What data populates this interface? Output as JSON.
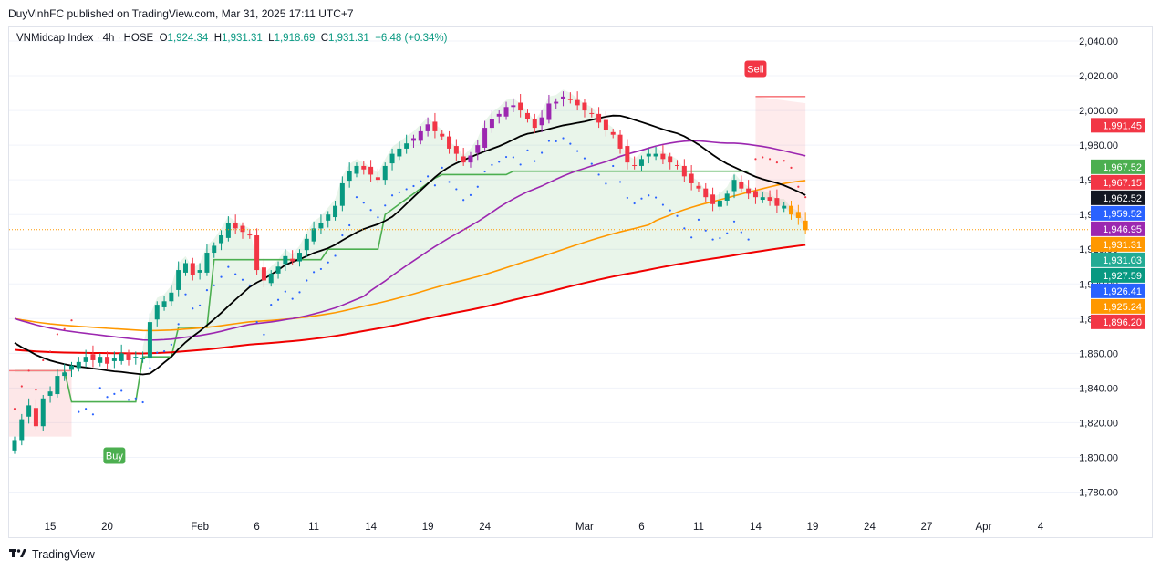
{
  "header": {
    "published_by": "DuyVinhFC published on TradingView.com, Mar 31, 2025 17:11 UTC+7"
  },
  "legend": {
    "symbol": "VNMidcap Index · 4h · HOSE",
    "o_label": "O",
    "o": "1,924.34",
    "h_label": "H",
    "h": "1,931.31",
    "l_label": "L",
    "l": "1,918.69",
    "c_label": "C",
    "c": "1,931.31",
    "change": "+6.48 (+0.34%)"
  },
  "footer": {
    "brand": "TradingView",
    "logo_icon": "tradingview-logo-icon"
  },
  "signals": [
    {
      "label": "Buy",
      "color": "#4caf50"
    },
    {
      "label": "Sell",
      "color": "#f23645"
    }
  ],
  "chart_data": {
    "type": "candlestick",
    "ylim": [
      1770,
      2045
    ],
    "y_ticks": [
      {
        "value": 1780,
        "label": "1,780.00"
      },
      {
        "value": 1800,
        "label": "1,800.00"
      },
      {
        "value": 1820,
        "label": "1,820.00"
      },
      {
        "value": 1840,
        "label": "1,840.00"
      },
      {
        "value": 1860,
        "label": "1,860.00"
      },
      {
        "value": 1880,
        "label": "1,880.00"
      },
      {
        "value": 1900,
        "label": "1,900.00"
      },
      {
        "value": 1920,
        "label": "1,920.00"
      },
      {
        "value": 1940,
        "label": "1,940.00"
      },
      {
        "value": 1960,
        "label": "1,960.00"
      },
      {
        "value": 1980,
        "label": "1,980.00"
      },
      {
        "value": 2000,
        "label": "2,000.00"
      },
      {
        "value": 2020,
        "label": "2,020.00"
      },
      {
        "value": 2040,
        "label": "2,040.00"
      }
    ],
    "x_ticks": [
      {
        "i": 5,
        "label": "15"
      },
      {
        "i": 13,
        "label": "20"
      },
      {
        "i": 26,
        "label": "Feb"
      },
      {
        "i": 34,
        "label": "6"
      },
      {
        "i": 42,
        "label": "11"
      },
      {
        "i": 50,
        "label": "14"
      },
      {
        "i": 58,
        "label": "19"
      },
      {
        "i": 66,
        "label": "24"
      },
      {
        "i": 80,
        "label": "Mar"
      },
      {
        "i": 88,
        "label": "6"
      },
      {
        "i": 96,
        "label": "11"
      },
      {
        "i": 104,
        "label": "14"
      },
      {
        "i": 112,
        "label": "19"
      },
      {
        "i": 120,
        "label": "24"
      },
      {
        "i": 128,
        "label": "27"
      },
      {
        "i": 136,
        "label": "Apr"
      },
      {
        "i": 144,
        "label": "4"
      }
    ],
    "price_labels": [
      {
        "value": 1991.45,
        "label": "1,991.45",
        "color": "#f23645"
      },
      {
        "value": 1967.52,
        "label": "1,967.52",
        "color": "#4caf50"
      },
      {
        "value": 1967.15,
        "label": "1,967.15",
        "color": "#f23645"
      },
      {
        "value": 1962.52,
        "label": "1,962.52",
        "color": "#131722"
      },
      {
        "value": 1959.52,
        "label": "1,959.52",
        "color": "#2962ff"
      },
      {
        "value": 1946.95,
        "label": "1,946.95",
        "color": "#9c27b0"
      },
      {
        "value": 1931.31,
        "label": "1,931.31",
        "color": "#ff9800"
      },
      {
        "value": 1931.03,
        "label": "1,931.03",
        "color": "#22ab94"
      },
      {
        "value": 1927.59,
        "label": "1,927.59",
        "color": "#089981"
      },
      {
        "value": 1926.41,
        "label": "1,926.41",
        "color": "#2962ff"
      },
      {
        "value": 1925.24,
        "label": "1,925.24",
        "color": "#ff9800"
      },
      {
        "value": 1896.2,
        "label": "1,896.20",
        "color": "#f23645"
      }
    ],
    "last_price": 1931.31,
    "closes": [
      1810,
      1822,
      1830,
      1818,
      1834,
      1838,
      1847,
      1849,
      1853,
      1855,
      1858,
      1856,
      1858,
      1854,
      1857,
      1860,
      1856,
      1858,
      1857,
      1878,
      1888,
      1890,
      1895,
      1908,
      1912,
      1905,
      1908,
      1918,
      1922,
      1928,
      1935,
      1932,
      1930,
      1928,
      1908,
      1902,
      1906,
      1910,
      1916,
      1913,
      1918,
      1926,
      1932,
      1935,
      1940,
      1945,
      1958,
      1965,
      1968,
      1966,
      1963,
      1960,
      1968,
      1975,
      1978,
      1981,
      1984,
      1988,
      1992,
      1988,
      1985,
      1978,
      1975,
      1970,
      1974,
      1980,
      1990,
      1995,
      1998,
      2002,
      2003,
      2000,
      1995,
      1990,
      1996,
      2004,
      2005,
      2008,
      2006,
      2003,
      2000,
      1998,
      1993,
      1989,
      1986,
      1978,
      1970,
      1968,
      1972,
      1975,
      1975,
      1972,
      1970,
      1968,
      1962,
      1958,
      1955,
      1950,
      1946,
      1948,
      1952,
      1960,
      1955,
      1952,
      1950,
      1950,
      1948,
      1945,
      1945,
      1940,
      1938,
      1931
    ]
  }
}
